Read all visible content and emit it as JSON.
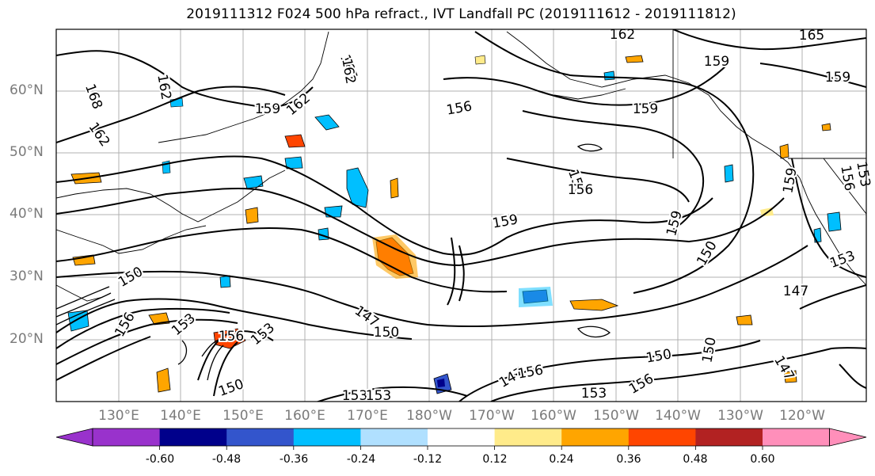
{
  "title": "2019111312 F024 500 hPa refract., IVT Landfall PC (2019111612 - 2019111812)",
  "lat_labels": [
    "60°N",
    "50°N",
    "40°N",
    "30°N",
    "20°N"
  ],
  "lon_labels": [
    "130°E",
    "140°E",
    "150°E",
    "160°E",
    "170°E",
    "180°W",
    "170°W",
    "160°W",
    "150°W",
    "140°W",
    "130°W",
    "120°W"
  ],
  "contour_labels": [
    "162",
    "165",
    "159",
    "159",
    "162",
    "165",
    "168",
    "162",
    "159",
    "162",
    "156",
    "159",
    "156",
    "156",
    "159",
    "159",
    "156",
    "159",
    "150",
    "153",
    "150",
    "147",
    "150",
    "147",
    "156",
    "153",
    "153",
    "153",
    "150",
    "156",
    "150",
    "150",
    "147",
    "153",
    "153",
    "162",
    "153",
    "156",
    "147",
    "156"
  ],
  "colorbar": {
    "colors": [
      "#9932cc",
      "#00008b",
      "#3355cc",
      "#00bfff",
      "#b0e0ff",
      "#ffffff",
      "#ffeb8a",
      "#ffa500",
      "#ff4500",
      "#b22222",
      "#ff8fba"
    ],
    "tick_labels": [
      "-0.60",
      "-0.48",
      "-0.36",
      "-0.24",
      "-0.12",
      "0.12",
      "0.24",
      "0.36",
      "0.48",
      "0.60"
    ]
  }
}
